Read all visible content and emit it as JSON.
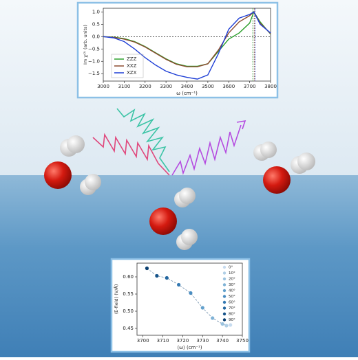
{
  "chart_data": [
    {
      "type": "line",
      "x_label": "ω (cm⁻¹)",
      "y_label": "Im χ⁽²⁾ (arb. units)",
      "x": [
        3000,
        3050,
        3100,
        3150,
        3200,
        3250,
        3300,
        3350,
        3400,
        3450,
        3500,
        3550,
        3600,
        3650,
        3700,
        3720,
        3750,
        3800
      ],
      "series": [
        {
          "name": "ZZZ",
          "color": "#2ca02c",
          "values": [
            0,
            -0.02,
            -0.08,
            -0.2,
            -0.4,
            -0.65,
            -0.9,
            -1.1,
            -1.2,
            -1.2,
            -1.1,
            -0.6,
            -0.1,
            0.15,
            0.55,
            1.0,
            0.6,
            0.1
          ]
        },
        {
          "name": "XXZ",
          "color": "#8c4a2f",
          "values": [
            0,
            -0.03,
            -0.1,
            -0.22,
            -0.42,
            -0.67,
            -0.92,
            -1.12,
            -1.22,
            -1.22,
            -1.1,
            -0.55,
            0.15,
            0.6,
            0.85,
            1.0,
            0.55,
            0.12
          ]
        },
        {
          "name": "XZX",
          "color": "#1f3fd6",
          "values": [
            0,
            -0.05,
            -0.2,
            -0.5,
            -0.85,
            -1.15,
            -1.4,
            -1.55,
            -1.65,
            -1.72,
            -1.55,
            -0.7,
            0.3,
            0.75,
            0.9,
            1.0,
            0.5,
            0.15
          ]
        }
      ],
      "vlines": [
        {
          "value": 3715,
          "color": "#2ca02c"
        },
        {
          "value": 3722,
          "color": "#8c4a2f"
        },
        {
          "value": 3726,
          "color": "#1f3fd6"
        }
      ],
      "hlines": [
        0
      ],
      "xlim": [
        3000,
        3800
      ],
      "xticks": [
        3000,
        3100,
        3200,
        3300,
        3400,
        3500,
        3600,
        3700,
        3800
      ],
      "ylim": [
        -1.8,
        1.15
      ],
      "yticks": [
        {
          "value": -1.5,
          "label": "−1.5"
        },
        {
          "value": -1,
          "label": "−1.0"
        },
        {
          "value": -0.5,
          "label": "−0.5"
        },
        {
          "value": 0,
          "label": "0.0"
        },
        {
          "value": 0.5,
          "label": "0.5"
        },
        {
          "value": 1,
          "label": "1.0"
        }
      ],
      "legend": "lower left"
    },
    {
      "type": "scatter",
      "x_label": "⟨ω⟩ (cm⁻¹)",
      "y_label": "⟨E-field⟩ (V/Å)",
      "series": [
        {
          "name": "0°",
          "color": "#c6dbef",
          "x": [
            3744
          ],
          "values": [
            0.46
          ]
        },
        {
          "name": "10°",
          "color": "#b0cfe6",
          "x": [
            3742
          ],
          "values": [
            0.458
          ]
        },
        {
          "name": "20°",
          "color": "#9cc3df",
          "x": [
            3740
          ],
          "values": [
            0.463
          ]
        },
        {
          "name": "30°",
          "color": "#7fb2d6",
          "x": [
            3735
          ],
          "values": [
            0.48
          ]
        },
        {
          "name": "40°",
          "color": "#62a0cc",
          "x": [
            3730
          ],
          "values": [
            0.51
          ]
        },
        {
          "name": "50°",
          "color": "#4a8dc1",
          "x": [
            3724
          ],
          "values": [
            0.553
          ]
        },
        {
          "name": "60°",
          "color": "#3479b2",
          "x": [
            3718
          ],
          "values": [
            0.577
          ]
        },
        {
          "name": "70°",
          "color": "#22669f",
          "x": [
            3712
          ],
          "values": [
            0.597
          ]
        },
        {
          "name": "80°",
          "color": "#15538a",
          "x": [
            3707
          ],
          "values": [
            0.603
          ]
        },
        {
          "name": "90°",
          "color": "#0b3f70",
          "x": [
            3702
          ],
          "values": [
            0.625
          ]
        }
      ],
      "xlim": [
        3697,
        3750
      ],
      "xticks": [
        3700,
        3710,
        3720,
        3730,
        3740,
        3750
      ],
      "ylim": [
        0.43,
        0.64
      ],
      "yticks": [
        0.45,
        {
          "value": 0.5,
          "label": "0.50"
        },
        0.55,
        {
          "value": 0.6,
          "label": "0.60"
        }
      ],
      "legend": "upper right"
    }
  ]
}
